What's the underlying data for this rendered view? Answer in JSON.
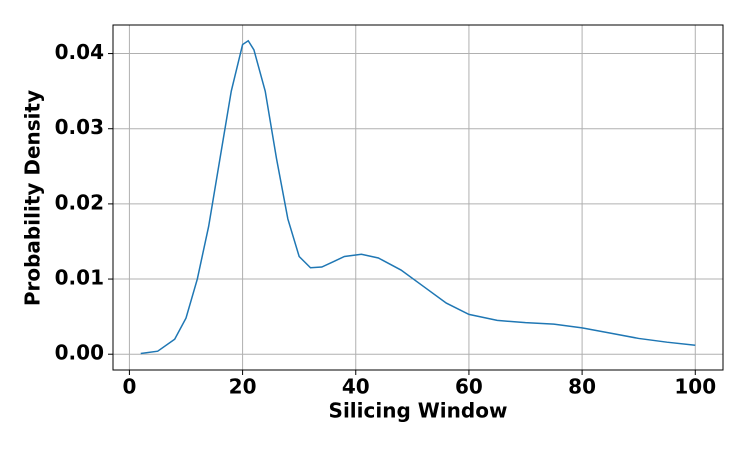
{
  "chart_data": {
    "type": "line",
    "x_label": "Silicing Window",
    "y_label": "Probability Density",
    "x": [
      2,
      5,
      8,
      10,
      12,
      14,
      16,
      18,
      20,
      21,
      22,
      24,
      26,
      28,
      30,
      32,
      34,
      36,
      38,
      41,
      44,
      48,
      52,
      56,
      60,
      65,
      70,
      75,
      80,
      85,
      90,
      95,
      100
    ],
    "series": [
      {
        "color": "#1f77b4",
        "values": [
          0.0001,
          0.0004,
          0.002,
          0.0048,
          0.01,
          0.017,
          0.026,
          0.035,
          0.0412,
          0.0417,
          0.0405,
          0.035,
          0.026,
          0.018,
          0.013,
          0.0115,
          0.0116,
          0.0123,
          0.013,
          0.0133,
          0.0128,
          0.0112,
          0.009,
          0.0068,
          0.0053,
          0.0045,
          0.0042,
          0.004,
          0.0035,
          0.0028,
          0.0021,
          0.0016,
          0.0012
        ]
      }
    ],
    "xlim": [
      -2.9,
      104.9
    ],
    "xticks": [
      0,
      20,
      40,
      60,
      80,
      100
    ],
    "ylim": [
      -0.0021,
      0.0438
    ],
    "yticks": [
      {
        "value": 0,
        "label": "0.00"
      },
      0.01,
      0.02,
      0.03,
      0.04
    ],
    "grid": true
  }
}
